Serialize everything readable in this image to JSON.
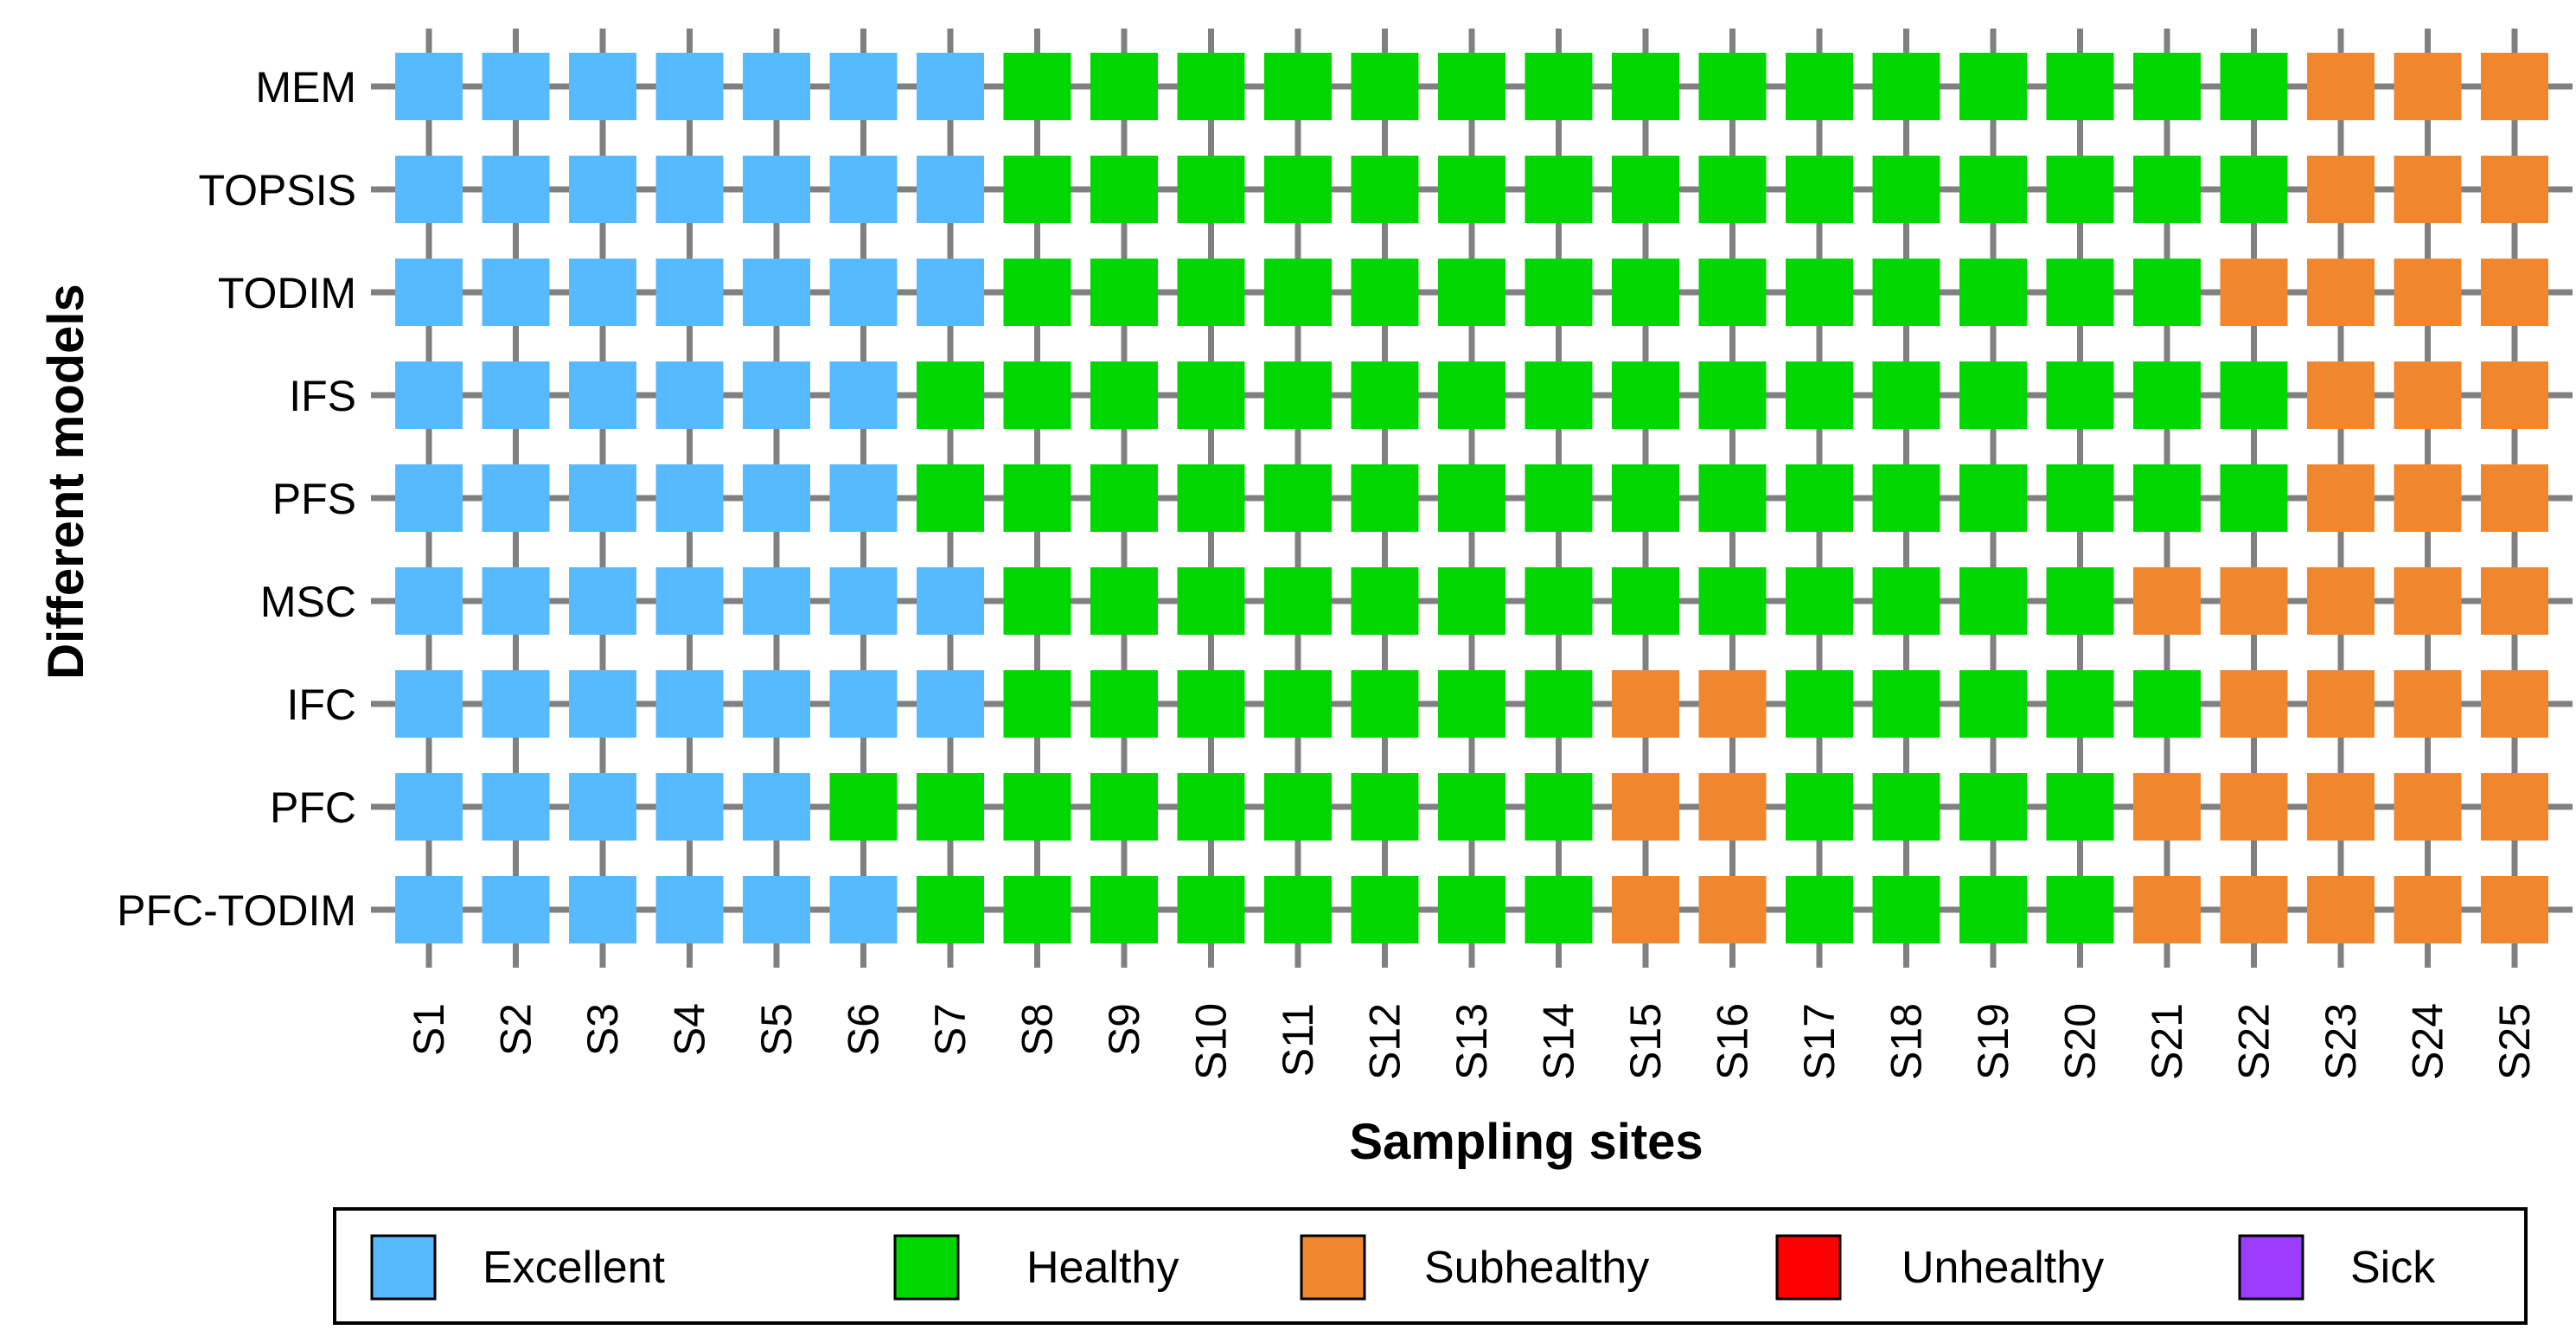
{
  "chart_data": {
    "type": "heatmap",
    "title": "",
    "xlabel": "Sampling sites",
    "ylabel": "Different models",
    "x": [
      "S1",
      "S2",
      "S3",
      "S4",
      "S5",
      "S6",
      "S7",
      "S8",
      "S9",
      "S10",
      "S11",
      "S12",
      "S13",
      "S14",
      "S15",
      "S16",
      "S17",
      "S18",
      "S19",
      "S20",
      "S21",
      "S22",
      "S23",
      "S24",
      "S25"
    ],
    "y": [
      "MEM",
      "TOPSIS",
      "TODIM",
      "IFS",
      "PFS",
      "MSC",
      "IFC",
      "PFC",
      "PFC-TODIM"
    ],
    "categories": [
      {
        "key": "E",
        "label": "Excellent",
        "color": "#57baff"
      },
      {
        "key": "H",
        "label": "Healthy",
        "color": "#00d700"
      },
      {
        "key": "SH",
        "label": "Subhealthy",
        "color": "#f0872f"
      },
      {
        "key": "U",
        "label": "Unhealthy",
        "color": "#ff0000"
      },
      {
        "key": "S",
        "label": "Sick",
        "color": "#9b3cff"
      }
    ],
    "grades": [
      [
        "E",
        "E",
        "E",
        "E",
        "E",
        "E",
        "E",
        "H",
        "H",
        "H",
        "H",
        "H",
        "H",
        "H",
        "H",
        "H",
        "H",
        "H",
        "H",
        "H",
        "H",
        "H",
        "SH",
        "SH",
        "SH"
      ],
      [
        "E",
        "E",
        "E",
        "E",
        "E",
        "E",
        "E",
        "H",
        "H",
        "H",
        "H",
        "H",
        "H",
        "H",
        "H",
        "H",
        "H",
        "H",
        "H",
        "H",
        "H",
        "H",
        "SH",
        "SH",
        "SH"
      ],
      [
        "E",
        "E",
        "E",
        "E",
        "E",
        "E",
        "E",
        "H",
        "H",
        "H",
        "H",
        "H",
        "H",
        "H",
        "H",
        "H",
        "H",
        "H",
        "H",
        "H",
        "H",
        "SH",
        "SH",
        "SH",
        "SH"
      ],
      [
        "E",
        "E",
        "E",
        "E",
        "E",
        "E",
        "H",
        "H",
        "H",
        "H",
        "H",
        "H",
        "H",
        "H",
        "H",
        "H",
        "H",
        "H",
        "H",
        "H",
        "H",
        "H",
        "SH",
        "SH",
        "SH"
      ],
      [
        "E",
        "E",
        "E",
        "E",
        "E",
        "E",
        "H",
        "H",
        "H",
        "H",
        "H",
        "H",
        "H",
        "H",
        "H",
        "H",
        "H",
        "H",
        "H",
        "H",
        "H",
        "H",
        "SH",
        "SH",
        "SH"
      ],
      [
        "E",
        "E",
        "E",
        "E",
        "E",
        "E",
        "E",
        "H",
        "H",
        "H",
        "H",
        "H",
        "H",
        "H",
        "H",
        "H",
        "H",
        "H",
        "H",
        "H",
        "SH",
        "SH",
        "SH",
        "SH",
        "SH"
      ],
      [
        "E",
        "E",
        "E",
        "E",
        "E",
        "E",
        "E",
        "H",
        "H",
        "H",
        "H",
        "H",
        "H",
        "H",
        "SH",
        "SH",
        "H",
        "H",
        "H",
        "H",
        "H",
        "SH",
        "SH",
        "SH",
        "SH"
      ],
      [
        "E",
        "E",
        "E",
        "E",
        "E",
        "H",
        "H",
        "H",
        "H",
        "H",
        "H",
        "H",
        "H",
        "H",
        "SH",
        "SH",
        "H",
        "H",
        "H",
        "H",
        "SH",
        "SH",
        "SH",
        "SH",
        "SH"
      ],
      [
        "E",
        "E",
        "E",
        "E",
        "E",
        "E",
        "H",
        "H",
        "H",
        "H",
        "H",
        "H",
        "H",
        "H",
        "SH",
        "SH",
        "H",
        "H",
        "H",
        "H",
        "SH",
        "SH",
        "SH",
        "SH",
        "SH"
      ]
    ],
    "legend_position": "bottom",
    "grid": true
  }
}
